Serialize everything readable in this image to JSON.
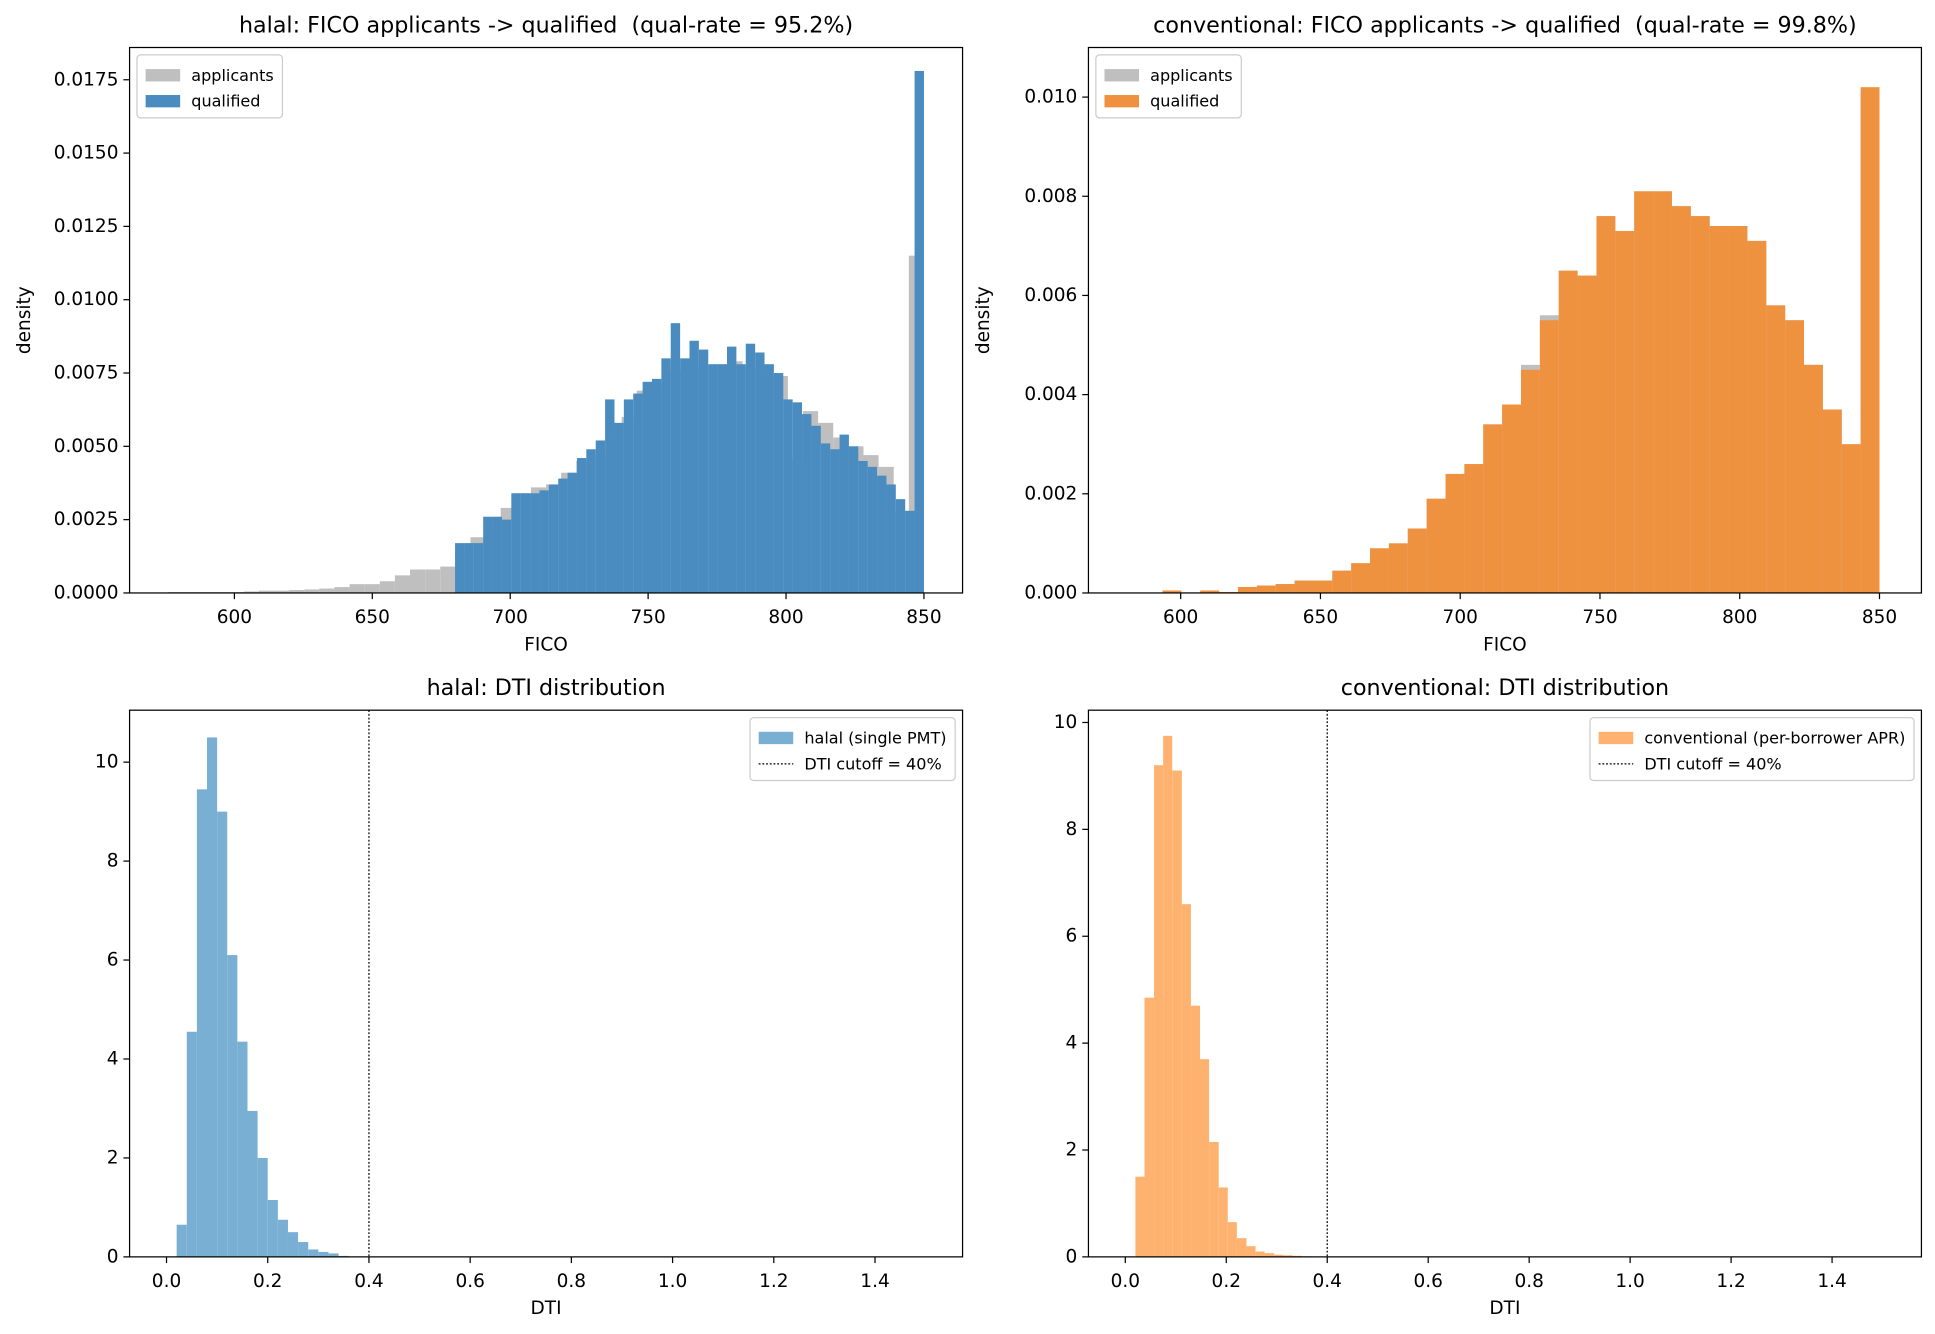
{
  "chart_data": [
    {
      "type": "histogram",
      "title": "halal: FICO applicants -> qualified  (qual-rate = 95.2%)",
      "xlabel": "FICO",
      "ylabel": "density",
      "xlim": [
        562,
        864
      ],
      "ylim": [
        0,
        0.0186
      ],
      "xticks": [
        600,
        650,
        700,
        750,
        800,
        850
      ],
      "yticks": [
        {
          "value": 0,
          "label": "0.0000"
        },
        0.0025,
        {
          "value": 0.005,
          "label": "0.0050"
        },
        0.0075,
        {
          "value": 0.01,
          "label": "0.0100"
        },
        0.0125,
        {
          "value": 0.015,
          "label": "0.0150"
        },
        0.0175
      ],
      "legend": "upper left",
      "series": [
        {
          "name": "applicants",
          "color": "#bfbfbf",
          "bins": [
            576,
            581.48,
            586.96,
            592.44,
            597.92,
            603.4,
            608.88,
            614.36,
            619.84,
            625.32,
            630.8,
            636.28,
            641.76,
            647.24,
            652.72,
            658.2,
            663.68,
            669.16,
            674.64,
            680.12,
            685.6,
            691.08,
            696.56,
            702.04,
            707.52,
            713,
            718.48,
            723.96,
            729.44,
            734.92,
            740.4,
            745.88,
            751.36,
            756.84,
            762.32,
            767.8,
            773.28,
            778.76,
            784.24,
            789.72,
            795.2,
            800.68,
            806.16,
            811.64,
            817.12,
            822.6,
            828.08,
            833.56,
            839.04,
            844.52,
            850
          ],
          "values": [
            3e-05,
            3e-05,
            3e-05,
            3e-05,
            3e-05,
            5e-05,
            8e-05,
            8e-05,
            0.0001,
            0.00012,
            0.00015,
            0.0002,
            0.0003,
            0.0003,
            0.0004,
            0.0006,
            0.0008,
            0.0008,
            0.0009,
            0.0016,
            0.0019,
            0.0024,
            0.0029,
            0.0034,
            0.0036,
            0.0037,
            0.0041,
            0.0045,
            0.0047,
            0.0054,
            0.006,
            0.0069,
            0.0071,
            0.0076,
            0.0078,
            0.0077,
            0.0078,
            0.0079,
            0.0077,
            0.0076,
            0.0074,
            0.0046,
            0.0062,
            0.0058,
            0.0053,
            0.005,
            0.0047,
            0.0043,
            0.0028,
            0.0115
          ]
        },
        {
          "name": "qualified",
          "color": "#4a8cbf",
          "bins": [
            680,
            683.4,
            686.8,
            690.2,
            693.6,
            697,
            700.4,
            703.8,
            707.2,
            710.6,
            714,
            717.4,
            720.8,
            724.2,
            727.6,
            731,
            734.4,
            737.8,
            741.2,
            744.6,
            748,
            751.4,
            754.8,
            758.2,
            761.6,
            765,
            768.4,
            771.8,
            775.2,
            778.6,
            782,
            785.4,
            788.8,
            792.2,
            795.6,
            799,
            802.4,
            805.8,
            809.2,
            812.6,
            816,
            819.4,
            822.8,
            826.2,
            829.6,
            833,
            836.4,
            839.8,
            843.2,
            846.6,
            850
          ],
          "values": [
            0.0017,
            0.0017,
            0.0017,
            0.0026,
            0.0026,
            0.0025,
            0.0034,
            0.0034,
            0.0034,
            0.0035,
            0.0037,
            0.0039,
            0.0041,
            0.0046,
            0.0049,
            0.0052,
            0.0066,
            0.0058,
            0.0066,
            0.0068,
            0.0072,
            0.0073,
            0.008,
            0.0092,
            0.008,
            0.0086,
            0.0083,
            0.0078,
            0.0078,
            0.0084,
            0.0078,
            0.0085,
            0.0082,
            0.0078,
            0.0075,
            0.0066,
            0.0065,
            0.0061,
            0.0057,
            0.0051,
            0.0049,
            0.0054,
            0.005,
            0.0045,
            0.0043,
            0.004,
            0.0037,
            0.0032,
            0.0028,
            0.0178
          ]
        }
      ]
    },
    {
      "type": "histogram",
      "title": "conventional: FICO applicants -> qualified  (qual-rate = 99.8%)",
      "xlabel": "FICO",
      "ylabel": "density",
      "xlim": [
        567,
        865
      ],
      "ylim": [
        0,
        0.011
      ],
      "xticks": [
        600,
        650,
        700,
        750,
        800,
        850
      ],
      "yticks": [
        {
          "value": 0,
          "label": "0.000"
        },
        0.002,
        0.004,
        0.006,
        0.008,
        {
          "value": 0.01,
          "label": "0.010"
        }
      ],
      "legend": "upper left",
      "series": [
        {
          "name": "applicants",
          "color": "#bfbfbf",
          "bins": [
            580,
            586.75,
            593.5,
            600.25,
            607,
            613.75,
            620.5,
            627.25,
            634,
            640.75,
            647.5,
            654.25,
            661,
            667.75,
            674.5,
            681.25,
            688,
            694.75,
            701.5,
            708.25,
            715,
            721.75,
            728.5,
            735.25,
            742,
            748.75,
            755.5,
            762.25,
            769,
            775.75,
            782.5,
            789.25,
            796,
            802.75,
            809.5,
            816.25,
            823,
            829.75,
            836.5,
            843.25,
            850
          ],
          "values": [
            0,
            0,
            5e-05,
            1e-05,
            5e-05,
            2e-05,
            0.00012,
            0.00015,
            0.00018,
            0.00025,
            0.00025,
            0.00045,
            0.0006,
            0.0009,
            0.001,
            0.0013,
            0.0019,
            0.0024,
            0.0026,
            0.0034,
            0.0038,
            0.0046,
            0.0056,
            0.0065,
            0.0064,
            0.0076,
            0.0073,
            0.0081,
            0.0081,
            0.0078,
            0.0076,
            0.0074,
            0.0074,
            0.0071,
            0.0058,
            0.0055,
            0.0046,
            0.0037,
            0.003,
            0.0101
          ]
        },
        {
          "name": "qualified",
          "color": "#ef9240",
          "bins": [
            580,
            586.75,
            593.5,
            600.25,
            607,
            613.75,
            620.5,
            627.25,
            634,
            640.75,
            647.5,
            654.25,
            661,
            667.75,
            674.5,
            681.25,
            688,
            694.75,
            701.5,
            708.25,
            715,
            721.75,
            728.5,
            735.25,
            742,
            748.75,
            755.5,
            762.25,
            769,
            775.75,
            782.5,
            789.25,
            796,
            802.75,
            809.5,
            816.25,
            823,
            829.75,
            836.5,
            843.25,
            850
          ],
          "values": [
            0,
            0,
            5e-05,
            1e-05,
            5e-05,
            2e-05,
            0.00012,
            0.00015,
            0.00018,
            0.00025,
            0.00025,
            0.00045,
            0.0006,
            0.0009,
            0.001,
            0.0013,
            0.0019,
            0.0024,
            0.0026,
            0.0034,
            0.0038,
            0.0045,
            0.0055,
            0.0065,
            0.0064,
            0.0076,
            0.0073,
            0.0081,
            0.0081,
            0.0078,
            0.0076,
            0.0074,
            0.0074,
            0.0071,
            0.0058,
            0.0055,
            0.0046,
            0.0037,
            0.003,
            0.0102
          ]
        }
      ]
    },
    {
      "type": "histogram",
      "title": "halal: DTI distribution",
      "xlabel": "DTI",
      "xlim": [
        -0.073,
        1.573
      ],
      "ylim": [
        0,
        11.05
      ],
      "xticks": [
        {
          "value": 0,
          "label": "0.0"
        },
        0.2,
        0.4,
        0.6,
        0.8,
        {
          "value": 1,
          "label": "1.0"
        },
        1.2,
        1.4
      ],
      "yticks": [
        0,
        2,
        4,
        6,
        8,
        10
      ],
      "legend": "upper right",
      "series": [
        {
          "name": "halal (single PMT)",
          "color": "#7aafd4",
          "bins": [
            0.02,
            0.04,
            0.06,
            0.08,
            0.1,
            0.12,
            0.14,
            0.16,
            0.18,
            0.2,
            0.22,
            0.24,
            0.26,
            0.28,
            0.3,
            0.32,
            0.34,
            0.36
          ],
          "values": [
            0.65,
            4.55,
            9.45,
            10.5,
            9.0,
            6.1,
            4.35,
            2.95,
            2.0,
            1.15,
            0.75,
            0.5,
            0.3,
            0.15,
            0.1,
            0.07,
            0.02
          ]
        }
      ],
      "cutoff": {
        "label": "DTI cutoff = 40%",
        "x": 0.4
      }
    },
    {
      "type": "histogram",
      "title": "conventional: DTI distribution",
      "xlabel": "DTI",
      "xlim": [
        -0.073,
        1.577
      ],
      "ylim": [
        0,
        10.23
      ],
      "xticks": [
        {
          "value": 0,
          "label": "0.0"
        },
        0.2,
        0.4,
        0.6,
        0.8,
        {
          "value": 1,
          "label": "1.0"
        },
        1.2,
        1.4
      ],
      "yticks": [
        0,
        2,
        4,
        6,
        8,
        10
      ],
      "legend": "upper right",
      "series": [
        {
          "name": "conventional (per-borrower APR)",
          "color": "#feb26f",
          "bins": [
            0.02,
            0.038,
            0.057,
            0.075,
            0.093,
            0.112,
            0.13,
            0.148,
            0.166,
            0.185,
            0.203,
            0.221,
            0.24,
            0.258,
            0.276,
            0.295,
            0.313,
            0.331,
            0.349,
            0.368
          ],
          "values": [
            1.5,
            4.85,
            9.2,
            9.75,
            9.1,
            6.6,
            4.7,
            3.7,
            2.15,
            1.3,
            0.65,
            0.35,
            0.2,
            0.1,
            0.07,
            0.04,
            0.03,
            0.02,
            0.01
          ]
        }
      ],
      "cutoff": {
        "label": "DTI cutoff = 40%",
        "x": 0.4
      }
    }
  ]
}
